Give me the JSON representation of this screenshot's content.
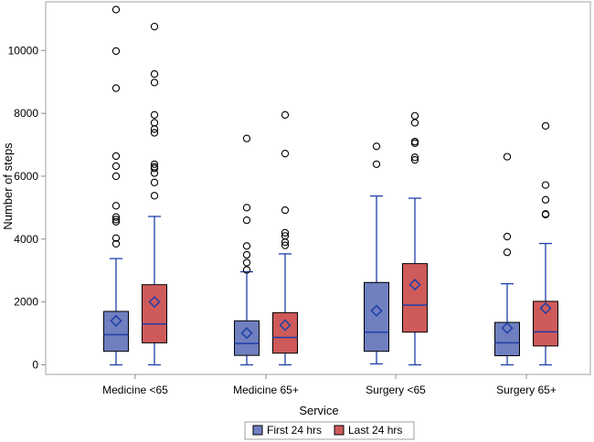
{
  "chart_data": {
    "type": "box",
    "xlabel": "Service",
    "ylabel": "Number of steps",
    "ylim": [
      0,
      11400
    ],
    "yticks": [
      0,
      2000,
      4000,
      6000,
      8000,
      10000
    ],
    "grid": false,
    "legend_position": "bottom",
    "categories": [
      "Medicine <65",
      "Medicine 65+",
      "Surgery <65",
      "Surgery 65+"
    ],
    "series": [
      {
        "name": "First 24 hrs",
        "fill": "#6f7fbf",
        "boxes": [
          {
            "min": 0,
            "q1": 430,
            "median": 960,
            "q3": 1700,
            "max": 3380,
            "mean": 1400,
            "outliers": [
              3850,
              4030,
              4550,
              4620,
              4700,
              5060,
              6000,
              6320,
              6640,
              8800,
              9980,
              11300
            ]
          },
          {
            "min": 0,
            "q1": 300,
            "median": 680,
            "q3": 1400,
            "max": 2960,
            "mean": 1010,
            "outliers": [
              3020,
              3250,
              3500,
              3780,
              4600,
              5000,
              7200
            ]
          },
          {
            "min": 30,
            "q1": 430,
            "median": 1040,
            "q3": 2620,
            "max": 5370,
            "mean": 1720,
            "outliers": [
              6380,
              6950
            ]
          },
          {
            "min": 0,
            "q1": 290,
            "median": 700,
            "q3": 1350,
            "max": 2580,
            "mean": 1170,
            "outliers": [
              3580,
              4080,
              6620
            ]
          }
        ]
      },
      {
        "name": "Last 24 hrs",
        "fill": "#cf5a5a",
        "boxes": [
          {
            "min": 0,
            "q1": 700,
            "median": 1300,
            "q3": 2550,
            "max": 4720,
            "mean": 2000,
            "outliers": [
              5380,
              5800,
              6100,
              6250,
              6300,
              6380,
              7380,
              7500,
              7700,
              7950,
              8980,
              9250,
              10760
            ]
          },
          {
            "min": 0,
            "q1": 370,
            "median": 870,
            "q3": 1660,
            "max": 3530,
            "mean": 1260,
            "outliers": [
              3800,
              3900,
              4100,
              4200,
              4920,
              6720,
              7950
            ]
          },
          {
            "min": 0,
            "q1": 1040,
            "median": 1900,
            "q3": 3220,
            "max": 5300,
            "mean": 2550,
            "outliers": [
              6520,
              6600,
              7050,
              7100,
              7700,
              7920
            ]
          },
          {
            "min": 0,
            "q1": 600,
            "median": 1050,
            "q3": 2020,
            "max": 3860,
            "mean": 1800,
            "outliers": [
              4780,
              4800,
              5250,
              5720,
              7600
            ]
          }
        ]
      }
    ]
  },
  "colors": {
    "line": "#1f3fa8",
    "axis": "#8c8c8c",
    "outlier": "#000000",
    "frame": "#a0a0a0"
  }
}
